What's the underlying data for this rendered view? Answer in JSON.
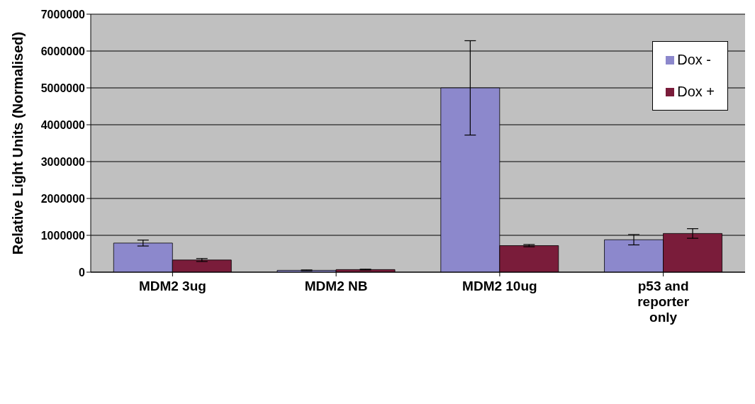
{
  "chart_data": {
    "type": "bar",
    "ylabel": "Relative Light Units (Normalised)",
    "categories": [
      "MDM2 3ug",
      "MDM2 NB",
      "MDM2 10ug",
      "p53 and reporter only"
    ],
    "series": [
      {
        "name": "Dox -",
        "color": "#8c88cc",
        "values": [
          790000,
          50000,
          5000000,
          880000
        ],
        "errors": [
          80000,
          10000,
          1280000,
          140000
        ]
      },
      {
        "name": "Dox +",
        "color": "#7a1c3a",
        "values": [
          330000,
          70000,
          720000,
          1050000
        ],
        "errors": [
          40000,
          10000,
          30000,
          130000
        ]
      }
    ],
    "ylim": [
      0,
      7000000
    ],
    "yticks": [
      0,
      1000000,
      2000000,
      3000000,
      4000000,
      5000000,
      6000000,
      7000000
    ],
    "grid": "y",
    "legend": "top right"
  }
}
